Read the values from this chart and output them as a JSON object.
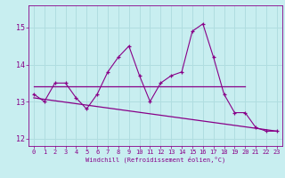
{
  "xlabel": "Windchill (Refroidissement éolien,°C)",
  "bg_color": "#c8eef0",
  "grid_color": "#b0dde0",
  "line_color": "#880088",
  "hours": [
    0,
    1,
    2,
    3,
    4,
    5,
    6,
    7,
    8,
    9,
    10,
    11,
    12,
    13,
    14,
    15,
    16,
    17,
    18,
    19,
    20,
    21,
    22,
    23
  ],
  "windchill": [
    13.2,
    13.0,
    13.5,
    13.5,
    13.1,
    12.8,
    13.2,
    13.8,
    14.2,
    14.5,
    13.7,
    13.0,
    13.5,
    13.7,
    13.8,
    14.9,
    15.1,
    14.2,
    13.2,
    12.7,
    12.7,
    12.3,
    12.2,
    12.2
  ],
  "trend1_x": [
    0,
    20
  ],
  "trend1_y": [
    13.4,
    13.4
  ],
  "trend2_x": [
    0,
    23
  ],
  "trend2_y": [
    13.1,
    12.2
  ],
  "ylim_min": 11.8,
  "ylim_max": 15.6,
  "xlim_min": -0.5,
  "xlim_max": 23.5,
  "yticks": [
    12,
    13,
    14,
    15
  ],
  "tick_fontsize": 5,
  "xlabel_fontsize": 5
}
